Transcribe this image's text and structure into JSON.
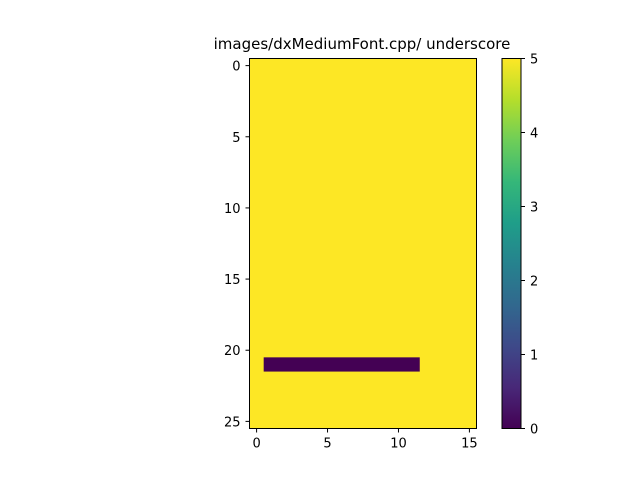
{
  "chart_data": {
    "type": "heatmap",
    "title": "images/dxMediumFont.cpp/ underscore",
    "rows": 26,
    "cols": 16,
    "background_value": 5,
    "underscore_segment": {
      "row": 21,
      "col_start": 1,
      "col_end": 11,
      "value": 0
    },
    "x_ticks": [
      0,
      5,
      10,
      15
    ],
    "y_ticks": [
      0,
      5,
      10,
      15,
      20,
      25
    ],
    "colorbar": {
      "range": [
        0,
        5
      ],
      "ticks": [
        0,
        1,
        2,
        3,
        4,
        5
      ],
      "colormap": "viridis",
      "colors": [
        "#440154",
        "#482878",
        "#3e4989",
        "#31688e",
        "#26828e",
        "#1f9e89",
        "#35b779",
        "#6ece58",
        "#b5de2b",
        "#fde725"
      ]
    },
    "grid": false,
    "xlabel": "",
    "ylabel": ""
  }
}
